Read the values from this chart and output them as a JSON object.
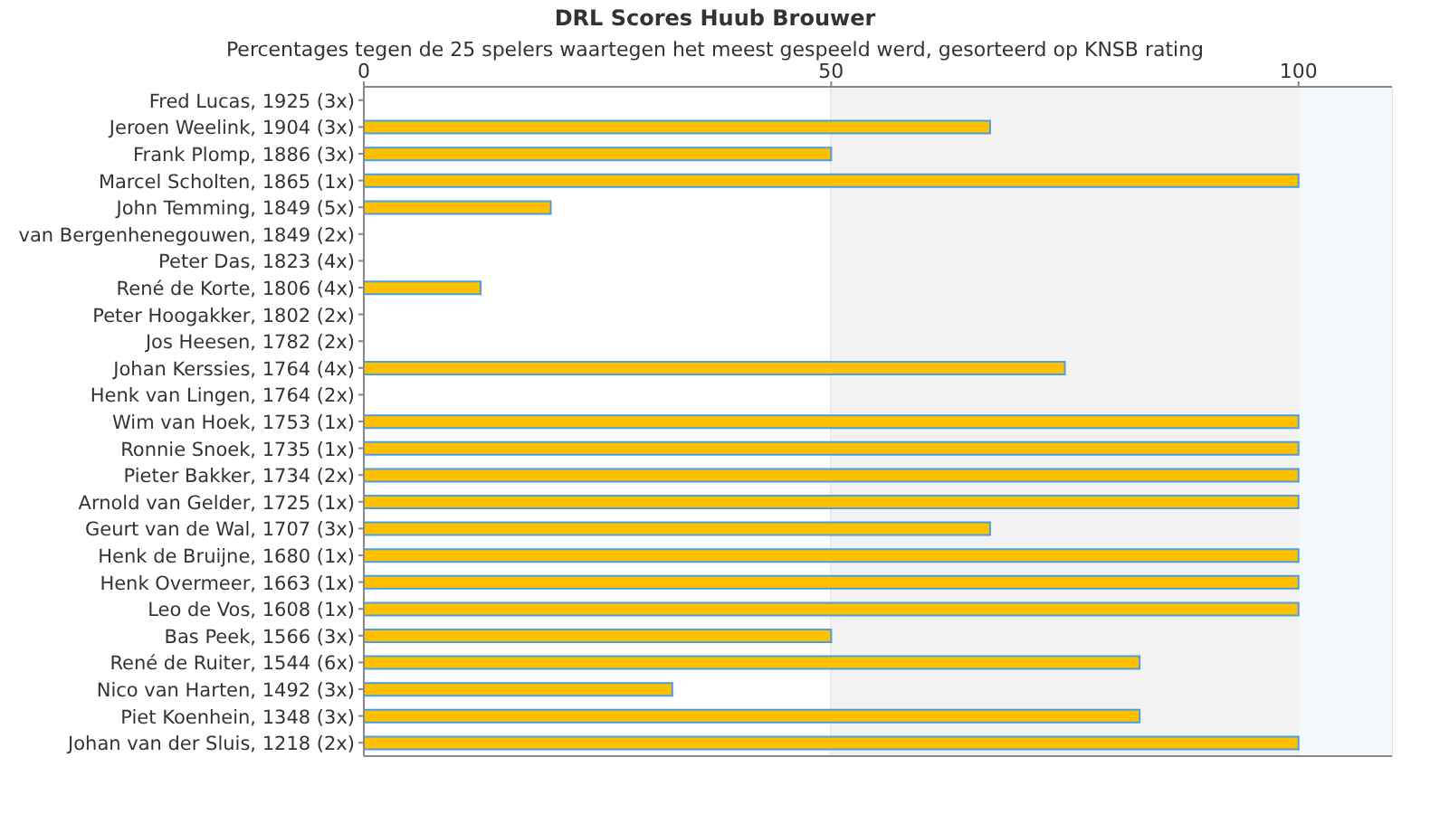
{
  "chart_data": {
    "type": "bar",
    "orientation": "horizontal",
    "title": "DRL Scores Huub Brouwer",
    "subtitle": "Percentages tegen de 25 spelers waartegen het meest gespeeld werd, gesorteerd op KNSB rating",
    "categories": [
      "Fred Lucas, 1925 (3x)",
      "Jeroen Weelink, 1904 (3x)",
      "Frank Plomp, 1886 (3x)",
      "Marcel Scholten, 1865 (1x)",
      "John Temming, 1849 (5x)",
      "van Bergenhenegouwen, 1849 (2x)",
      "Peter Das, 1823 (4x)",
      "René de Korte, 1806 (4x)",
      "Peter Hoogakker, 1802 (2x)",
      "Jos Heesen, 1782 (2x)",
      "Johan Kerssies, 1764 (4x)",
      "Henk van Lingen, 1764 (2x)",
      "Wim van Hoek, 1753 (1x)",
      "Ronnie Snoek, 1735 (1x)",
      "Pieter Bakker, 1734 (2x)",
      "Arnold van Gelder, 1725 (1x)",
      "Geurt van de Wal, 1707 (3x)",
      "Henk de Bruijne, 1680 (1x)",
      "Henk Overmeer, 1663 (1x)",
      "Leo de Vos, 1608 (1x)",
      "Bas Peek, 1566 (3x)",
      "René de Ruiter, 1544 (6x)",
      "Nico van Harten, 1492 (3x)",
      "Piet Koenhein, 1348 (3x)",
      "Johan van der Sluis, 1218 (2x)"
    ],
    "values": [
      0,
      67,
      50,
      100,
      20,
      0,
      0,
      12.5,
      0,
      0,
      75,
      0,
      100,
      100,
      100,
      100,
      67,
      100,
      100,
      100,
      50,
      83,
      33,
      83,
      100
    ],
    "color": "#ffc000",
    "xlim": [
      0,
      110
    ],
    "xticks": [
      0,
      50,
      100
    ],
    "grid": "x",
    "bands": [
      {
        "axis": "x",
        "from": 50,
        "to": 100,
        "color": "#f2f2f2"
      },
      {
        "axis": "x",
        "from": 100,
        "to": 110,
        "color": "#f4f8fb"
      }
    ]
  }
}
